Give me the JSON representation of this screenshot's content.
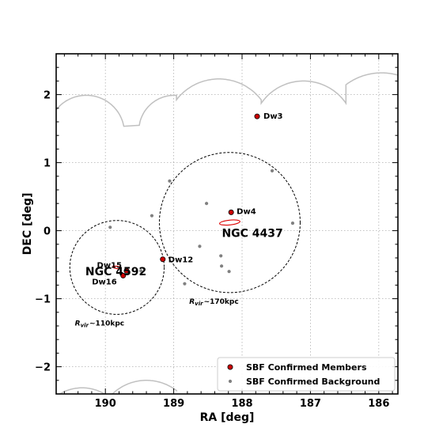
{
  "chart_data": {
    "type": "scatter",
    "xlabel": "RA [deg]",
    "ylabel": "DEC [deg]",
    "xlim": [
      190.72,
      185.72
    ],
    "ylim": [
      -2.4,
      2.6
    ],
    "x_ticks": [
      190,
      189,
      188,
      187,
      186
    ],
    "y_ticks": [
      -2,
      -1,
      0,
      1,
      2
    ],
    "grid": true,
    "legend_position": "lower-right",
    "colors": {
      "member": "#cc0000",
      "background": "#808080",
      "survey_edge": "#c0c0c0",
      "host_ellipse": "#dd0000",
      "virial_circle": "#000000"
    },
    "series": [
      {
        "name": "SBF Confirmed Members",
        "points": [
          {
            "label": "Dw3",
            "x": 187.78,
            "y": 1.68
          },
          {
            "label": "Dw4",
            "x": 188.16,
            "y": 0.27
          },
          {
            "label": "Dw12",
            "x": 189.16,
            "y": -0.42
          },
          {
            "label": "Dw15",
            "x": 189.69,
            "y": -0.59
          },
          {
            "label": "Dw16",
            "x": 189.74,
            "y": -0.66
          }
        ]
      },
      {
        "name": "SBF Confirmed Background",
        "points": [
          {
            "x": 189.93,
            "y": 0.05
          },
          {
            "x": 189.32,
            "y": 0.22
          },
          {
            "x": 189.06,
            "y": 0.73
          },
          {
            "x": 188.52,
            "y": 0.4
          },
          {
            "x": 188.62,
            "y": -0.23
          },
          {
            "x": 188.31,
            "y": -0.37
          },
          {
            "x": 188.3,
            "y": -0.52
          },
          {
            "x": 188.19,
            "y": -0.6
          },
          {
            "x": 188.84,
            "y": -0.78
          },
          {
            "x": 189.48,
            "y": -0.59
          },
          {
            "x": 187.56,
            "y": 0.88
          },
          {
            "x": 187.26,
            "y": 0.11
          }
        ]
      }
    ],
    "hosts": [
      {
        "name": "NGC 4437",
        "x": 188.18,
        "y": 0.12,
        "rvir_label": "R",
        "rvir_sub": "vir",
        "rvir_value": "~170kpc",
        "radius_deg": 1.03,
        "ellipse": {
          "a_deg": 0.15,
          "b_deg": 0.035,
          "angle_deg": -6
        }
      },
      {
        "name": "NGC 4592",
        "x": 189.83,
        "y": -0.54,
        "rvir_label": "R",
        "rvir_sub": "vir",
        "rvir_value": "~110kpc",
        "radius_deg": 0.69,
        "ellipse": {
          "a_deg": 0.065,
          "b_deg": 0.018,
          "angle_deg": 8
        }
      }
    ],
    "survey_footprint": {
      "top_arcs": [
        {
          "cx": 190.28,
          "cy": 1.43,
          "r": 0.56,
          "from": 190.72,
          "to": 189.64
        },
        {
          "cx": 188.99,
          "cy": 1.47,
          "r": 0.52,
          "from": 189.64,
          "to": 188.96
        },
        {
          "cx": 188.34,
          "cy": 1.45,
          "r": 0.78,
          "from": 188.96,
          "to": 187.72
        },
        {
          "cx": 187.1,
          "cy": 1.45,
          "r": 0.75,
          "from": 187.72,
          "to": 186.48
        },
        {
          "cx": 185.96,
          "cy": 1.46,
          "r": 0.86,
          "from": 186.48,
          "to": 185.72
        }
      ],
      "bottom_arcs": [
        {
          "cx": 190.34,
          "cy": -2.95,
          "r": 0.64,
          "from": 190.72,
          "to": 190.0
        },
        {
          "cx": 189.4,
          "cy": -2.92,
          "r": 0.72,
          "from": 190.0,
          "to": 188.95
        }
      ]
    }
  }
}
